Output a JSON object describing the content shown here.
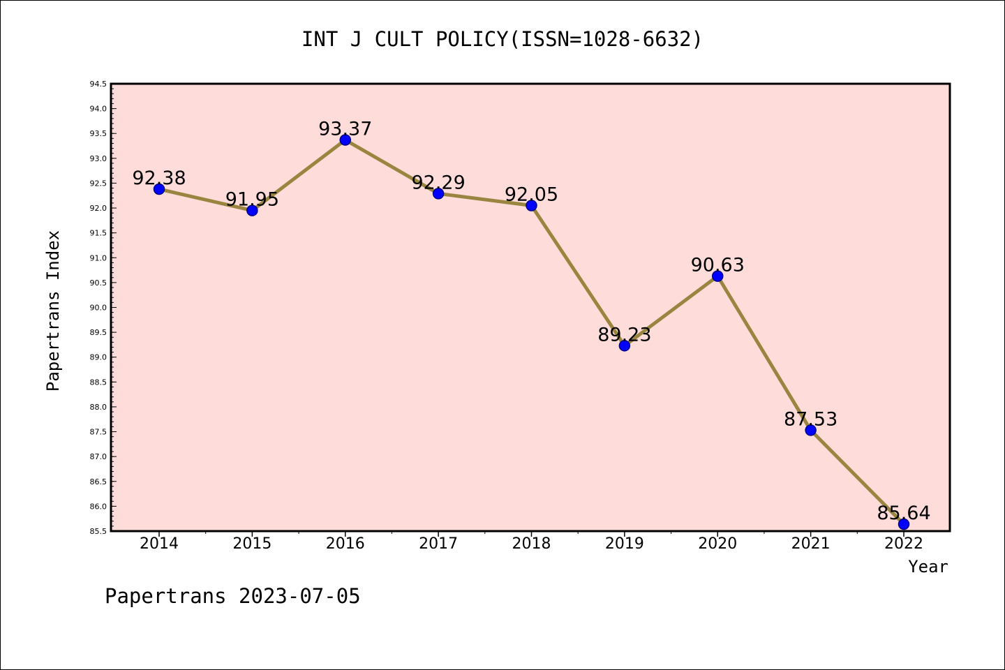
{
  "chart_data": {
    "type": "line",
    "title": "INT J CULT POLICY(ISSN=1028-6632)",
    "xlabel": "Year",
    "ylabel": "Papertrans Index",
    "x": [
      "2014",
      "2015",
      "2016",
      "2017",
      "2018",
      "2019",
      "2020",
      "2021",
      "2022"
    ],
    "series": [
      {
        "values": [
          92.38,
          91.95,
          93.37,
          92.29,
          92.05,
          89.23,
          90.63,
          87.53,
          85.64
        ],
        "labels": [
          "92.38",
          "91.95",
          "93.37",
          "92.29",
          "92.05",
          "89.23",
          "90.63",
          "87.53",
          "85.64"
        ]
      }
    ],
    "ylim": [
      85.5,
      94.5
    ],
    "yticks": [
      "85.5",
      "86.0",
      "86.5",
      "87.0",
      "87.5",
      "88.0",
      "88.5",
      "89.0",
      "89.5",
      "90.0",
      "90.5",
      "91.0",
      "91.5",
      "92.0",
      "92.5",
      "93.0",
      "93.5",
      "94.0",
      "94.5"
    ],
    "grid": false,
    "colors": {
      "plot_background": "#fddcda",
      "line": "#9a8540",
      "marker_fill": "#0000ff",
      "marker_edge": "#00008b",
      "axes": "#000000"
    }
  },
  "footer": {
    "watermark": "Papertrans 2023-07-05"
  }
}
